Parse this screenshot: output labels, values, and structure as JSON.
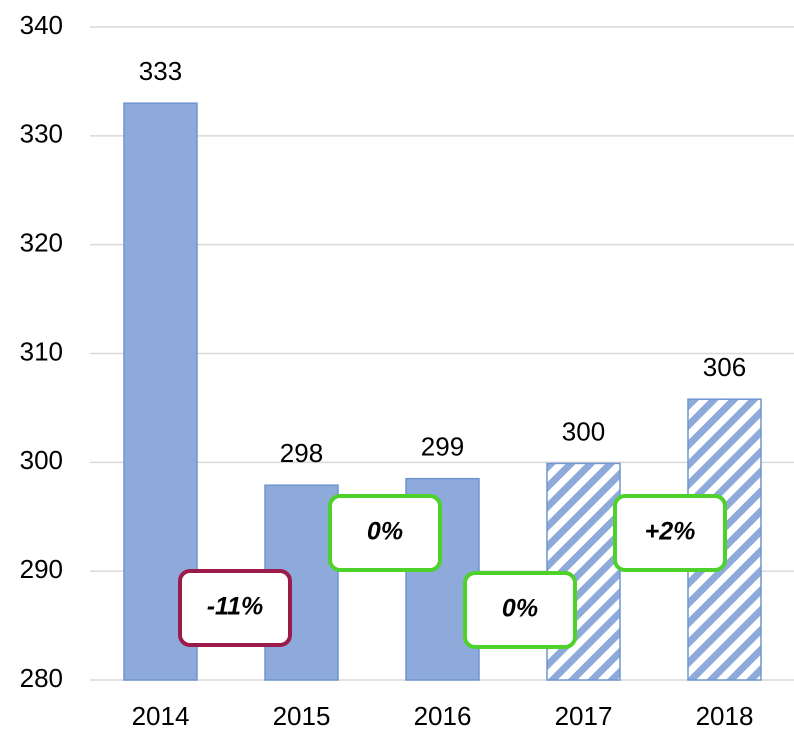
{
  "chart_data": {
    "type": "bar",
    "categories": [
      "2014",
      "2015",
      "2016",
      "2017",
      "2018"
    ],
    "values": [
      333,
      297.9,
      298.5,
      299.9,
      305.8
    ],
    "value_labels": [
      "333",
      "298",
      "299",
      "300",
      "306"
    ],
    "hatched": [
      false,
      false,
      false,
      true,
      true
    ],
    "color": "#8eaadb",
    "ylim": [
      280,
      340
    ],
    "yticks": [
      280,
      290,
      300,
      310,
      320,
      330,
      340
    ],
    "grid": true,
    "annotations": [
      {
        "text": "-11%",
        "color": "#9b1b4a"
      },
      {
        "text": "0%",
        "color": "#4fd12c"
      },
      {
        "text": "0%",
        "color": "#4fd12c"
      },
      {
        "text": "+2%",
        "color": "#4fd12c"
      }
    ]
  }
}
